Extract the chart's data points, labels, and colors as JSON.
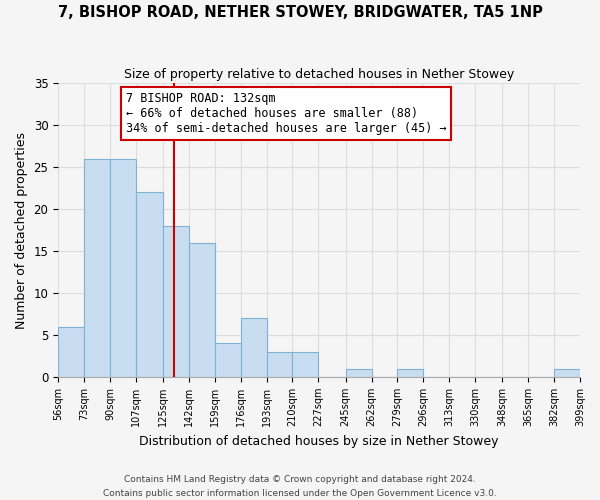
{
  "title": "7, BISHOP ROAD, NETHER STOWEY, BRIDGWATER, TA5 1NP",
  "subtitle": "Size of property relative to detached houses in Nether Stowey",
  "xlabel": "Distribution of detached houses by size in Nether Stowey",
  "ylabel": "Number of detached properties",
  "bin_labels": [
    "56sqm",
    "73sqm",
    "90sqm",
    "107sqm",
    "125sqm",
    "142sqm",
    "159sqm",
    "176sqm",
    "193sqm",
    "210sqm",
    "227sqm",
    "245sqm",
    "262sqm",
    "279sqm",
    "296sqm",
    "313sqm",
    "330sqm",
    "348sqm",
    "365sqm",
    "382sqm",
    "399sqm"
  ],
  "bin_edges": [
    56,
    73,
    90,
    107,
    125,
    142,
    159,
    176,
    193,
    210,
    227,
    245,
    262,
    279,
    296,
    313,
    330,
    348,
    365,
    382,
    399
  ],
  "counts": [
    6,
    26,
    26,
    22,
    18,
    16,
    4,
    7,
    3,
    3,
    0,
    1,
    0,
    1,
    0,
    0,
    0,
    0,
    0,
    1
  ],
  "bar_color": "#c8ddf0",
  "bar_edge_color": "#7fb3d3",
  "property_size": 132,
  "vline_color": "#cc0000",
  "annotation_text": "7 BISHOP ROAD: 132sqm\n← 66% of detached houses are smaller (88)\n34% of semi-detached houses are larger (45) →",
  "annotation_box_color": "#ffffff",
  "annotation_box_edge": "#cc0000",
  "ylim": [
    0,
    35
  ],
  "yticks": [
    0,
    5,
    10,
    15,
    20,
    25,
    30,
    35
  ],
  "footer_line1": "Contains HM Land Registry data © Crown copyright and database right 2024.",
  "footer_line2": "Contains public sector information licensed under the Open Government Licence v3.0.",
  "background_color": "#f5f5f5",
  "grid_color": "#dddddd"
}
